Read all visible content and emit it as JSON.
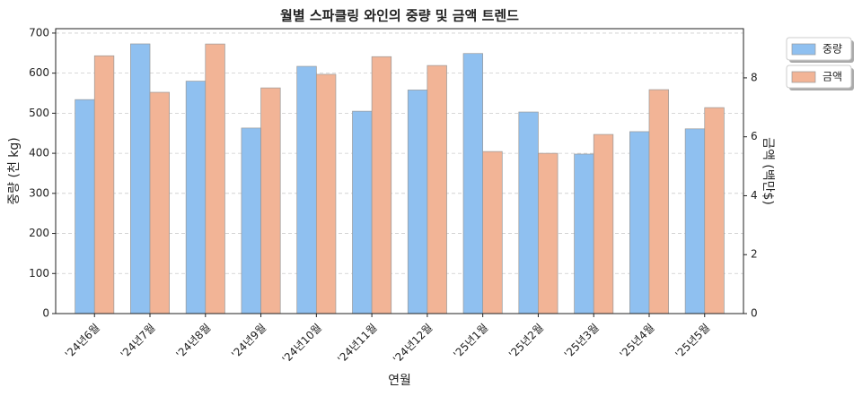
{
  "chart_data": {
    "type": "bar",
    "title": "월별 스파클링 와인의 중량 및 금액 트렌드",
    "x_label": "연월",
    "y_label": "중량 (천 kg)",
    "y2_label": "금액 (백만$)",
    "categories": [
      "'24년6월",
      "'24년7월",
      "'24년8월",
      "'24년9월",
      "'24년10월",
      "'24년11월",
      "'24년12월",
      "'25년1월",
      "'25년2월",
      "'25년3월",
      "'25년4월",
      "'25년5월"
    ],
    "series": [
      {
        "name": "중량",
        "color": "#8fc0f0",
        "values": [
          534,
          673,
          580,
          463,
          617,
          505,
          558,
          649,
          503,
          398,
          454,
          461
        ]
      },
      {
        "name": "금액",
        "color": "#f2b496",
        "axis": "y2",
        "values": [
          8.75,
          7.51,
          9.15,
          7.66,
          8.12,
          8.72,
          8.42,
          5.5,
          5.44,
          6.08,
          7.6,
          6.99
        ]
      }
    ],
    "ylim": [
      0,
      711
    ],
    "yticks": [
      0,
      100,
      200,
      300,
      400,
      500,
      600,
      700
    ],
    "y2lim": [
      0,
      9.67
    ],
    "y2ticks": [
      0,
      2,
      4,
      6,
      8
    ],
    "grid": true,
    "legend": "outside upper right"
  }
}
